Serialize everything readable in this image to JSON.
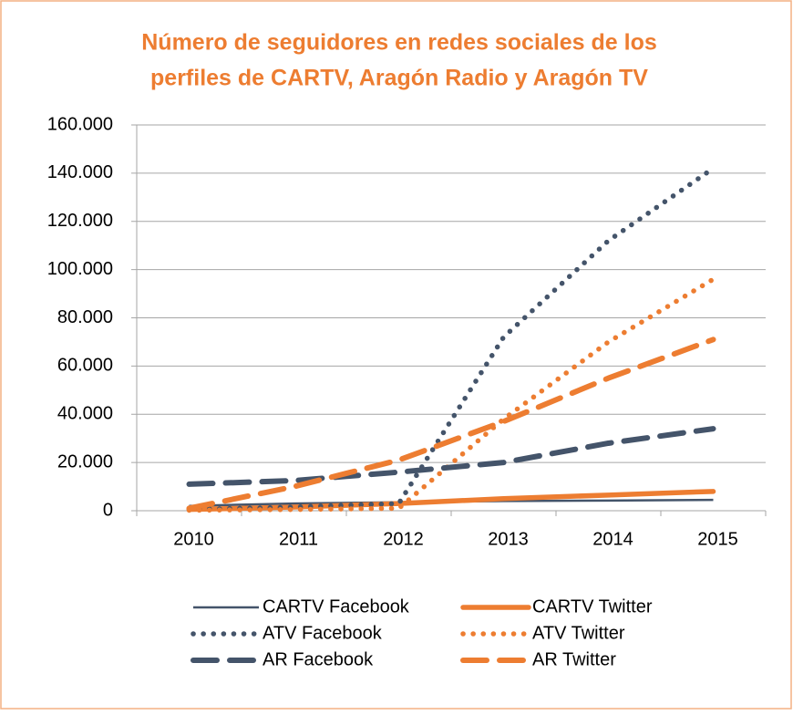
{
  "chart_data": {
    "type": "line",
    "title": [
      "Número de seguidores en redes sociales de los",
      "perfiles de CARTV, Aragón Radio y Aragón TV"
    ],
    "categories": [
      "2010",
      "2011",
      "2012",
      "2013",
      "2014",
      "2015"
    ],
    "ylim": [
      0,
      160000
    ],
    "yticks": [
      0,
      {
        "value": 20000,
        "label": "20.000"
      },
      {
        "value": 40000,
        "label": "40.000"
      },
      {
        "value": 60000,
        "label": "60.000"
      },
      {
        "value": 80000,
        "label": "80.000"
      },
      {
        "value": 100000,
        "label": "100.000"
      },
      {
        "value": 120000,
        "label": "120.000"
      },
      {
        "value": 140000,
        "label": "140.000"
      },
      {
        "value": 160000,
        "label": "160.000"
      }
    ],
    "grid": true,
    "legend": "bottom",
    "series": [
      {
        "name": "CARTV Facebook",
        "color": "#44546a",
        "style": "thin",
        "values": [
          2000,
          3000,
          3500,
          4000,
          4200,
          4500
        ]
      },
      {
        "name": "CARTV Twitter",
        "color": "#ed7d31",
        "style": "solid",
        "values": [
          500,
          1500,
          3000,
          5000,
          6500,
          8000
        ]
      },
      {
        "name": "ATV Facebook",
        "color": "#44546a",
        "style": "dotted",
        "values": [
          500,
          1500,
          3000,
          72000,
          112000,
          142000
        ]
      },
      {
        "name": "ATV Twitter",
        "color": "#ed7d31",
        "style": "dotted",
        "values": [
          200,
          500,
          1000,
          38000,
          70000,
          96000
        ]
      },
      {
        "name": "AR Facebook",
        "color": "#44546a",
        "style": "dashed",
        "values": [
          11000,
          12500,
          16000,
          20000,
          28000,
          34000
        ]
      },
      {
        "name": "AR Twitter",
        "color": "#ed7d31",
        "style": "dashed",
        "values": [
          1000,
          10000,
          21000,
          37000,
          55000,
          71000
        ]
      }
    ]
  }
}
